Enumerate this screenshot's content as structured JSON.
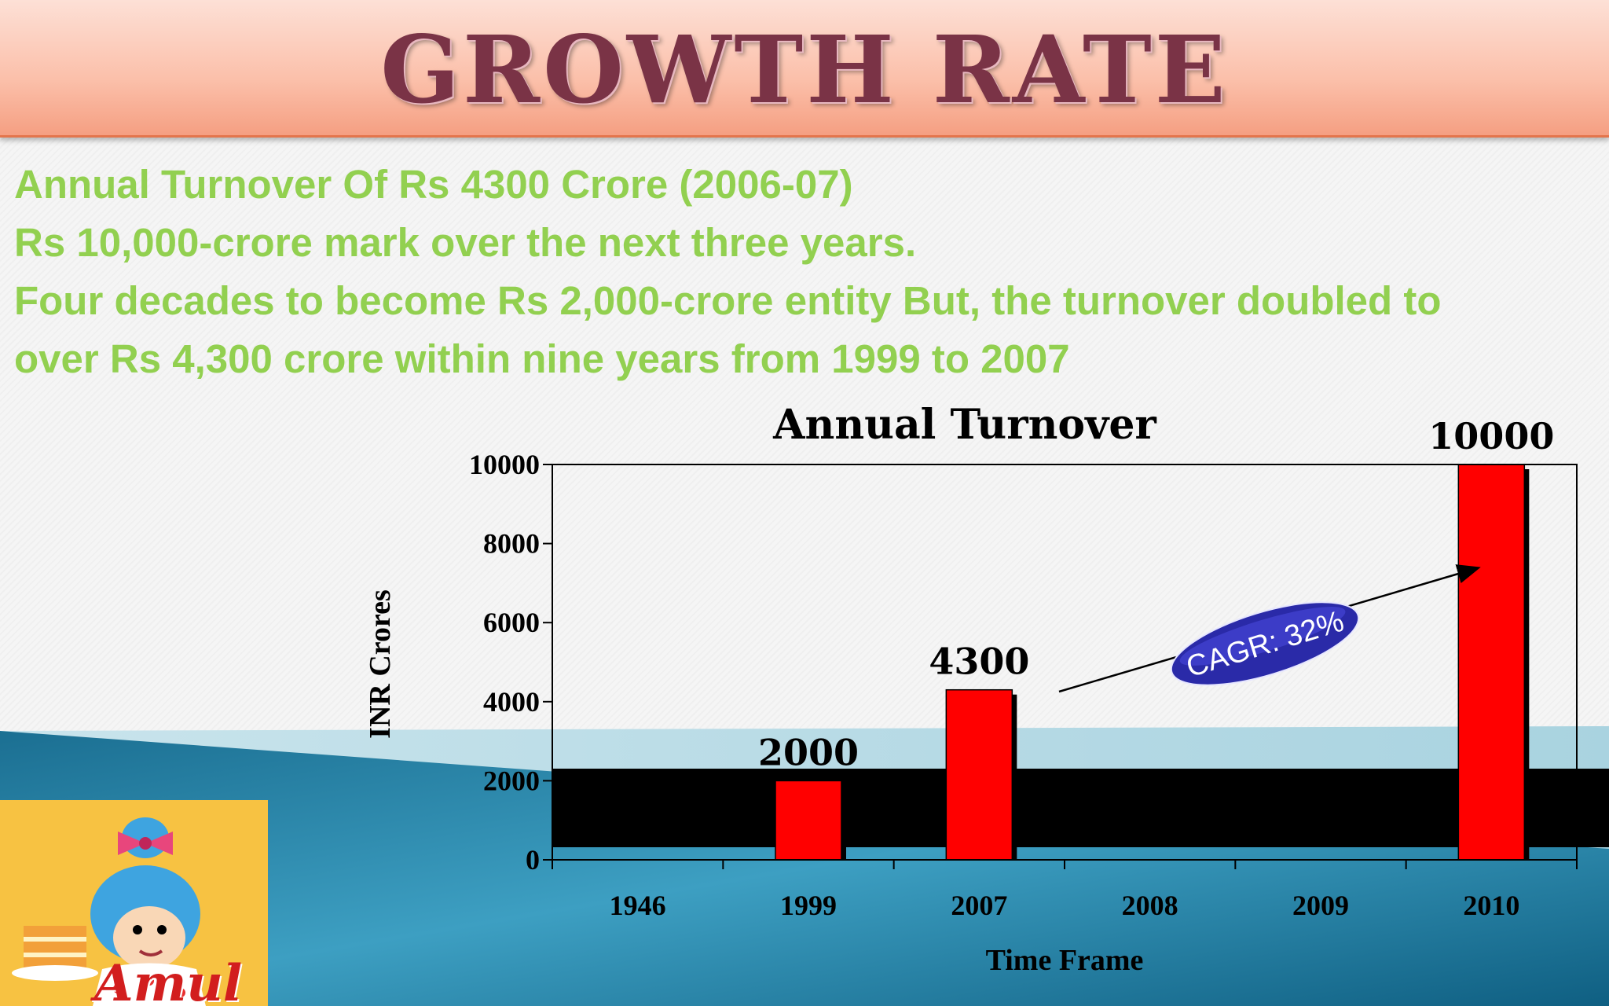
{
  "slide": {
    "title": "GROWTH RATE",
    "bullets": [
      "Annual Turnover Of Rs 4300 Crore (2006-07)",
      "Rs 10,000-crore mark over the next three years.",
      "Four decades to become Rs 2,000-crore entity But, the turnover doubled to",
      "over Rs 4,300 crore within nine years from 1999 to 2007"
    ],
    "logo_text": "Amul"
  },
  "colors": {
    "title": "#7a3346",
    "bullet_text": "#92d050",
    "bar": "#ff0000",
    "cagr_fill": "#2a2aa8",
    "teal": "#2d8fb0"
  },
  "chart_data": {
    "type": "bar",
    "title": "Annual Turnover",
    "xlabel": "Time Frame",
    "ylabel": "INR Crores",
    "categories": [
      "1946",
      "1999",
      "2007",
      "2008",
      "2009",
      "2010"
    ],
    "values": [
      null,
      2000,
      4300,
      null,
      null,
      10000
    ],
    "data_labels": [
      "",
      "2000",
      "4300",
      "",
      "",
      "10000"
    ],
    "ylim": [
      0,
      10000
    ],
    "yticks": [
      "0",
      "2000",
      "4000",
      "6000",
      "8000",
      "10000"
    ],
    "annotation": "CAGR: 32%",
    "grid": false
  }
}
